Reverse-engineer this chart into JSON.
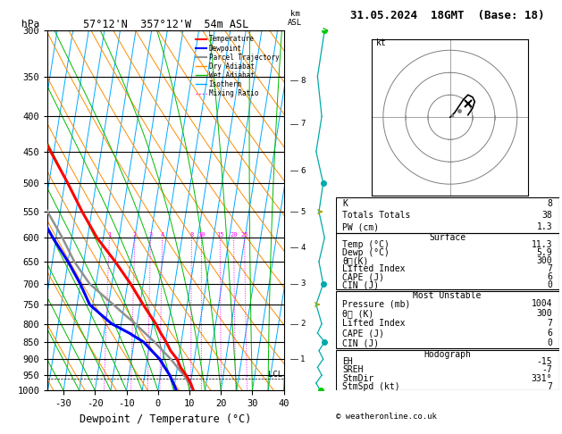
{
  "title_left": "57°12'N  357°12'W  54m ASL",
  "title_right": "31.05.2024  18GMT  (Base: 18)",
  "xlabel": "Dewpoint / Temperature (°C)",
  "ylabel_left": "hPa",
  "pressure_levels": [
    300,
    350,
    400,
    450,
    500,
    550,
    600,
    650,
    700,
    750,
    800,
    850,
    900,
    950,
    1000
  ],
  "T_min": -35,
  "T_max": 40,
  "p_min": 300,
  "p_max": 1000,
  "skew_factor": 18,
  "colors": {
    "temperature": "#FF0000",
    "dewpoint": "#0000FF",
    "parcel": "#909090",
    "dry_adiabat": "#FF8C00",
    "wet_adiabat": "#00BB00",
    "isotherm": "#00AAFF",
    "mixing_ratio": "#FF00FF",
    "background": "#FFFFFF",
    "grid": "#000000",
    "wind": "#00AAAA",
    "wind_dot": "#00CC00"
  },
  "skewt_data": {
    "pressure": [
      1000,
      975,
      950,
      925,
      900,
      875,
      850,
      825,
      800,
      775,
      750,
      700,
      650,
      600,
      550,
      500,
      450,
      400,
      350,
      300
    ],
    "temperature": [
      11.3,
      10.0,
      8.2,
      6.0,
      4.5,
      2.0,
      0.2,
      -2.0,
      -4.0,
      -6.5,
      -9.0,
      -14.0,
      -20.0,
      -27.0,
      -33.0,
      -39.0,
      -46.0,
      -54.0,
      -58.0,
      -56.0
    ],
    "dewpoint": [
      5.9,
      4.5,
      3.0,
      1.0,
      -1.0,
      -4.0,
      -7.0,
      -12.0,
      -18.0,
      -22.0,
      -26.0,
      -30.0,
      -35.0,
      -41.0,
      -47.0,
      -52.0,
      -58.0,
      -63.0,
      -65.0,
      -65.0
    ],
    "parcel": [
      11.3,
      9.5,
      7.5,
      5.0,
      2.5,
      -0.5,
      -3.5,
      -7.0,
      -10.5,
      -14.5,
      -18.5,
      -27.0,
      -33.0,
      -38.0,
      -44.0,
      -50.0,
      -57.0,
      -63.0,
      null,
      null
    ]
  },
  "mixing_ratio_lines": [
    1,
    2,
    3,
    4,
    8,
    10,
    15,
    20,
    25
  ],
  "km_ticks": {
    "heights": [
      1,
      2,
      3,
      4,
      5,
      6,
      7,
      8
    ],
    "pressures": [
      900,
      800,
      700,
      620,
      550,
      480,
      410,
      355
    ]
  },
  "lcl_pressure": 960,
  "wind_data": {
    "pressure": [
      1000,
      975,
      950,
      925,
      900,
      875,
      850,
      825,
      800,
      750,
      700,
      650,
      600,
      550,
      500,
      450,
      400,
      350,
      300
    ],
    "x_offset": [
      0.0,
      -0.15,
      0.05,
      -0.1,
      0.1,
      -0.05,
      0.15,
      -0.1,
      0.05,
      -0.1,
      0.1,
      -0.05,
      0.15,
      -0.05,
      0.1,
      -0.1,
      0.05,
      -0.05,
      0.1
    ],
    "dot_pressures": [
      1000,
      850,
      700,
      500,
      300
    ],
    "dot_colors": [
      "#00CC00",
      "#00AAAA",
      "#00AAAA",
      "#00AAAA",
      "#00AAAA"
    ],
    "arrow_pressures": [
      750,
      550,
      300
    ],
    "arrow_colors": [
      "#AAAA00",
      "#AAAA00",
      "#00CC00"
    ]
  },
  "stats": {
    "K": 8,
    "Totals_Totals": 38,
    "PW_cm": 1.3,
    "Surface_Temp": 11.3,
    "Surface_Dewp": 5.9,
    "Surface_theta_e": 300,
    "Surface_LI": 7,
    "Surface_CAPE": 6,
    "Surface_CIN": 0,
    "MU_Pressure": 1004,
    "MU_theta_e": 300,
    "MU_LI": 7,
    "MU_CAPE": 6,
    "MU_CIN": 0,
    "Hodo_EH": -15,
    "Hodo_SREH": -7,
    "Hodo_StmDir": 331,
    "Hodo_StmSpd": 7
  }
}
